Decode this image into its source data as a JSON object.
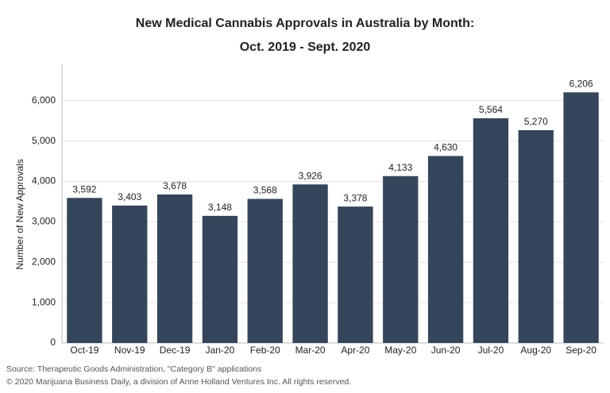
{
  "chart_data": {
    "type": "bar",
    "title_lines": [
      "New Medical Cannabis Approvals in Australia by Month:",
      "Oct. 2019 - Sept. 2020"
    ],
    "y_label": "Number of New Approvals",
    "categories": [
      "Oct-19",
      "Nov-19",
      "Dec-19",
      "Jan-20",
      "Feb-20",
      "Mar-20",
      "Apr-20",
      "May-20",
      "Jun-20",
      "Jul-20",
      "Aug-20",
      "Sep-20"
    ],
    "values": [
      3592,
      3403,
      3678,
      3148,
      3568,
      3926,
      3378,
      4133,
      4630,
      5564,
      5270,
      6206
    ],
    "value_labels": [
      "3,592",
      "3,403",
      "3,678",
      "3,148",
      "3,568",
      "3,926",
      "3,378",
      "4,133",
      "4,630",
      "5,564",
      "5,270",
      "6,206"
    ],
    "color": "#36465a",
    "ylim": [
      0,
      6900
    ],
    "yticks": [
      0,
      {
        "value": 1000,
        "label": "1,000"
      },
      {
        "value": 2000,
        "label": "2,000"
      },
      {
        "value": 3000,
        "label": "3,000"
      },
      {
        "value": 4000,
        "label": "4,000"
      },
      {
        "value": 5000,
        "label": "5,000"
      },
      {
        "value": 6000,
        "label": "6,000"
      }
    ],
    "grid": true,
    "source": "Source: Therapeutic Goods Administration, \"Category B\" applications",
    "copyright": "© 2020 Marijuana Business Daily, a division of Anne Holland Ventures Inc. All rights reserved."
  }
}
